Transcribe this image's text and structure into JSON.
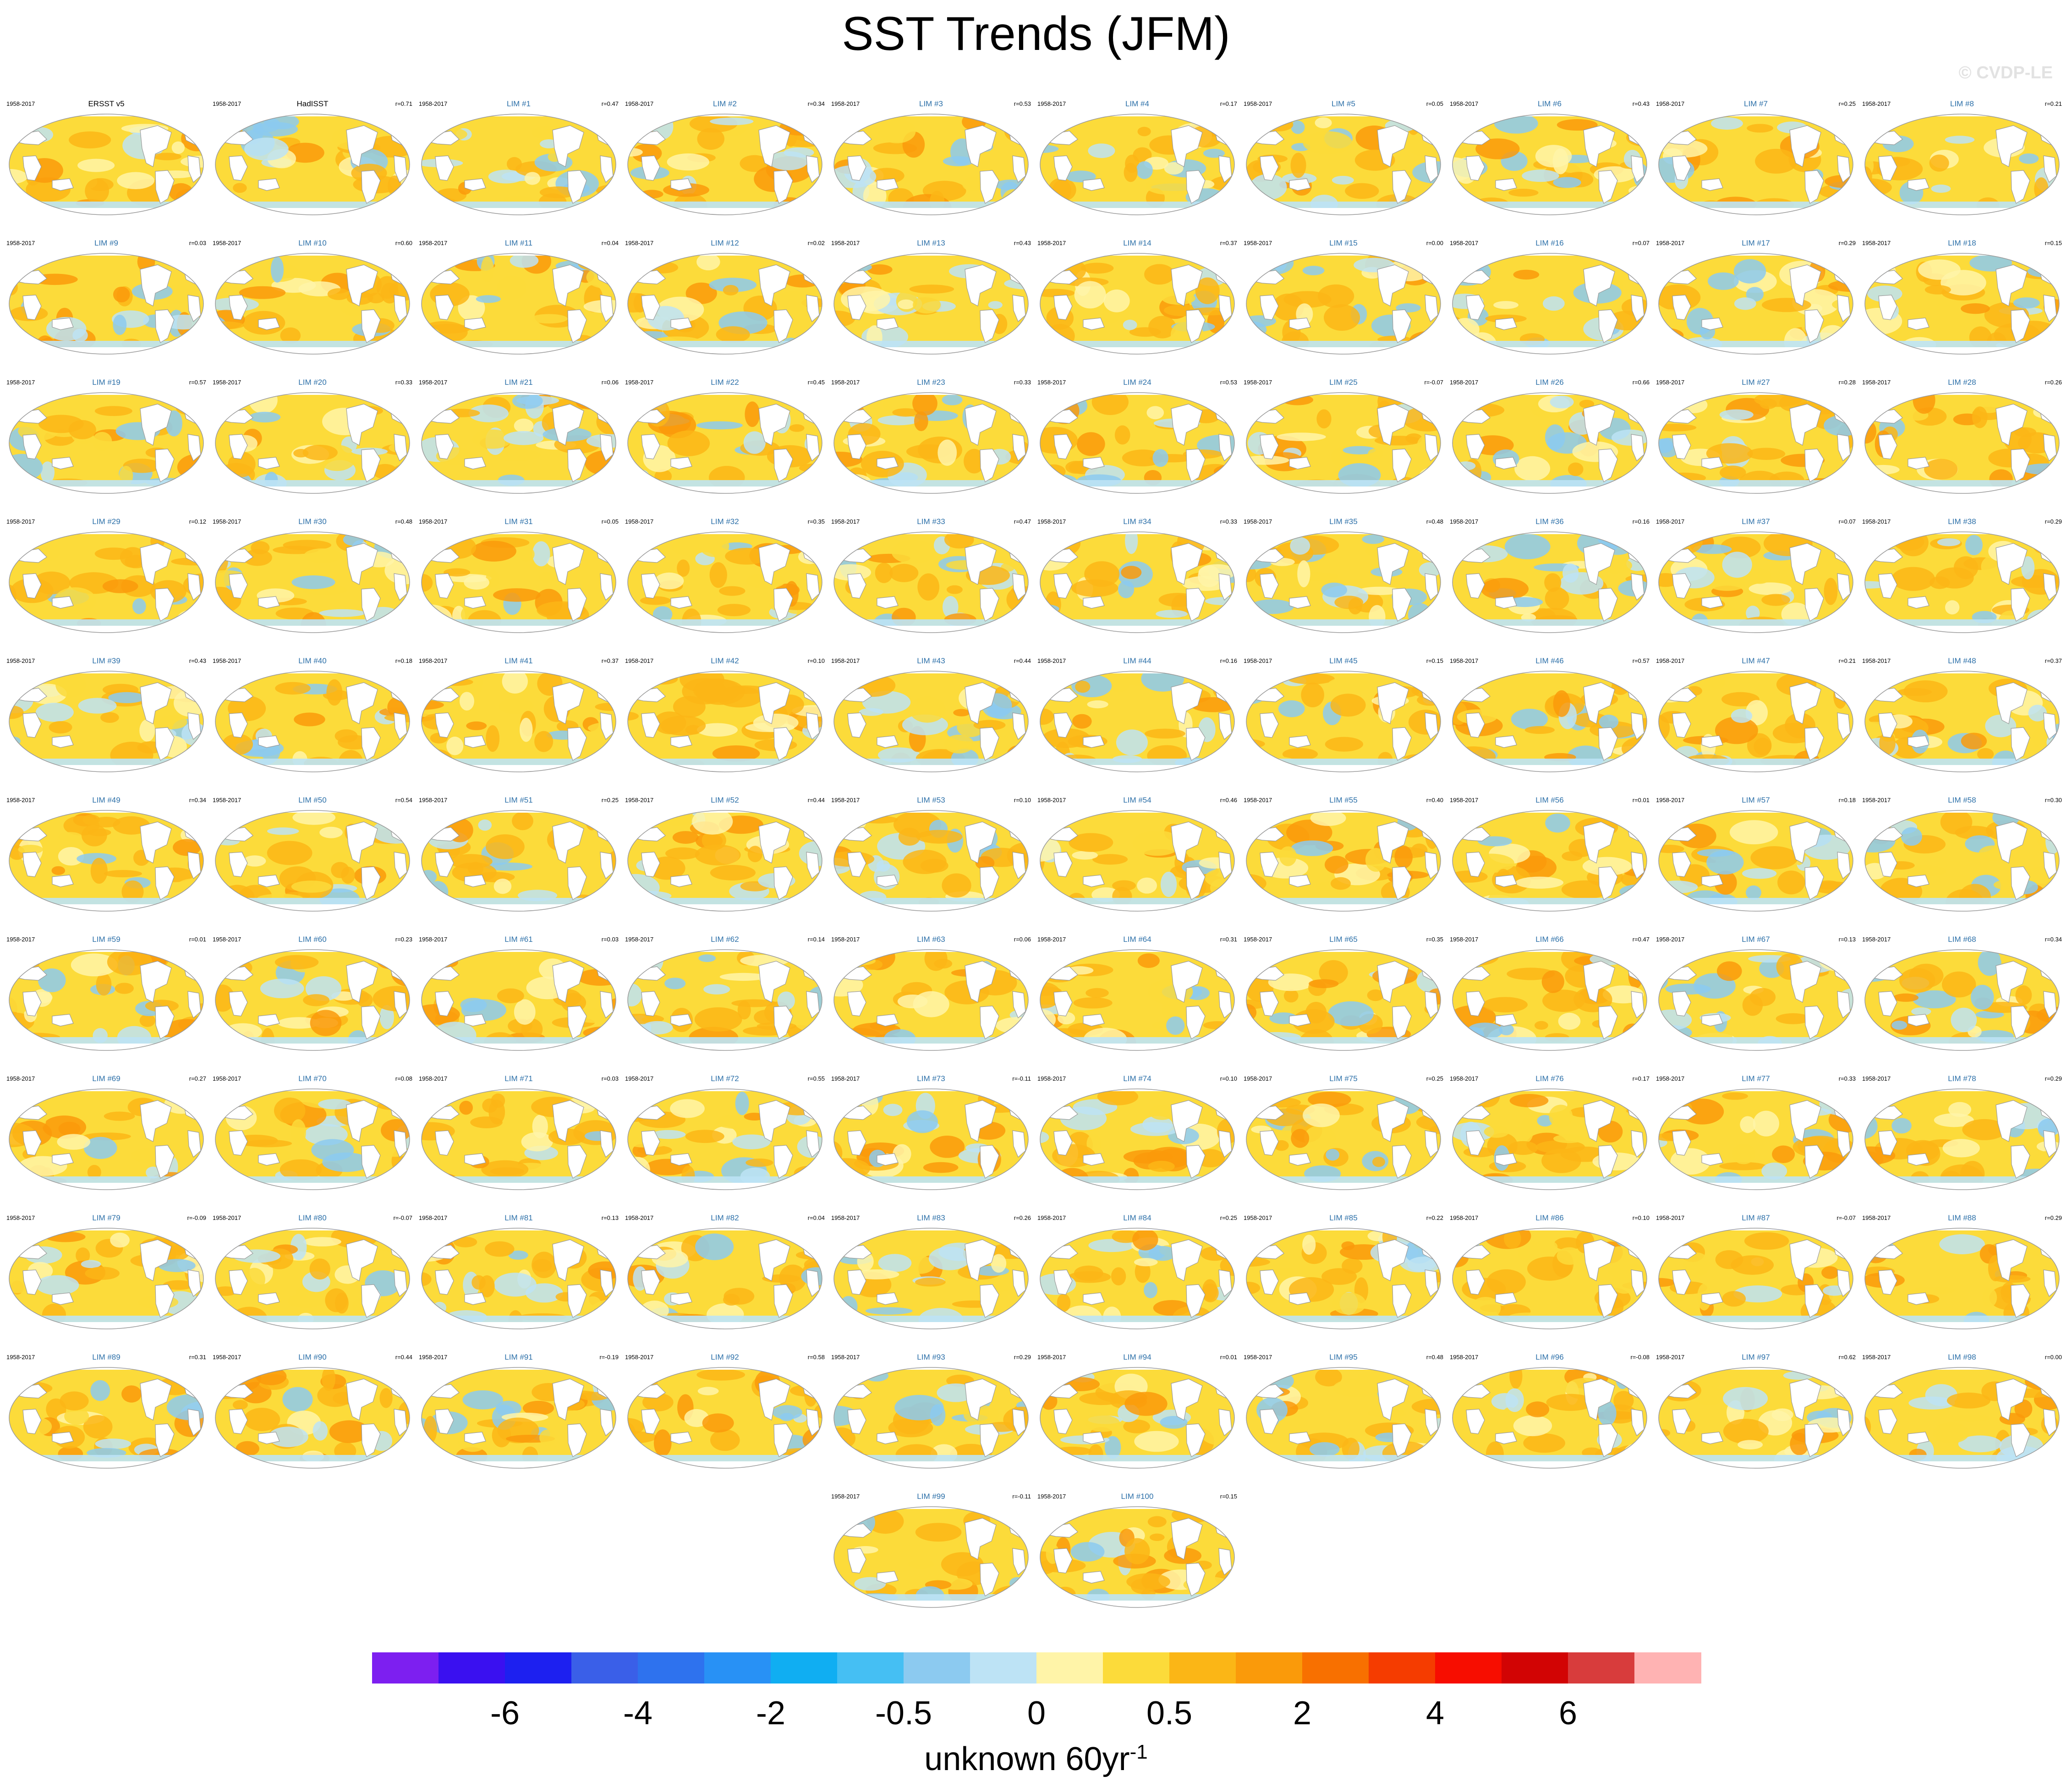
{
  "title": "SST Trends (JFM)",
  "watermark": "© CVDP-LE",
  "chart_data": {
    "type": "heatmap",
    "title": "SST Trends (JFM)",
    "period": "1958-2017",
    "units_main": "unknown 60yr",
    "units_sup": "-1",
    "colorbar": {
      "colors": [
        "#7d1ff0",
        "#3a10f0",
        "#1d20f0",
        "#3a5fe8",
        "#2e72ee",
        "#2891f5",
        "#10aef2",
        "#45bff3",
        "#8ccaf0",
        "#bde3f5",
        "#fff4a8",
        "#fcdb3a",
        "#fbb616",
        "#fa9a0a",
        "#f87000",
        "#f53c00",
        "#f70d00",
        "#d20404",
        "#d83c3c",
        "#ffb3b3"
      ],
      "tick_labels": [
        "-6",
        "-4",
        "-2",
        "-0.5",
        "0",
        "0.5",
        "2",
        "4",
        "6"
      ],
      "tick_boundaries": [
        2,
        4,
        6,
        8,
        10,
        12,
        14,
        16,
        18
      ]
    },
    "panels": [
      {
        "name": "ERSST v5",
        "r": ""
      },
      {
        "name": "HadISST",
        "r": "r=0.71"
      },
      {
        "name": "LIM #1",
        "r": "r=0.47"
      },
      {
        "name": "LIM #2",
        "r": "r=0.34"
      },
      {
        "name": "LIM #3",
        "r": "r=0.53"
      },
      {
        "name": "LIM #4",
        "r": "r=0.17"
      },
      {
        "name": "LIM #5",
        "r": "r=0.05"
      },
      {
        "name": "LIM #6",
        "r": "r=0.43"
      },
      {
        "name": "LIM #7",
        "r": "r=0.25"
      },
      {
        "name": "LIM #8",
        "r": "r=0.21"
      },
      {
        "name": "LIM #9",
        "r": "r=0.03"
      },
      {
        "name": "LIM #10",
        "r": "r=0.60"
      },
      {
        "name": "LIM #11",
        "r": "r=0.04"
      },
      {
        "name": "LIM #12",
        "r": "r=0.02"
      },
      {
        "name": "LIM #13",
        "r": "r=0.43"
      },
      {
        "name": "LIM #14",
        "r": "r=0.37"
      },
      {
        "name": "LIM #15",
        "r": "r=0.00"
      },
      {
        "name": "LIM #16",
        "r": "r=0.07"
      },
      {
        "name": "LIM #17",
        "r": "r=0.29"
      },
      {
        "name": "LIM #18",
        "r": "r=0.15"
      },
      {
        "name": "LIM #19",
        "r": "r=0.57"
      },
      {
        "name": "LIM #20",
        "r": "r=0.33"
      },
      {
        "name": "LIM #21",
        "r": "r=0.06"
      },
      {
        "name": "LIM #22",
        "r": "r=0.45"
      },
      {
        "name": "LIM #23",
        "r": "r=0.33"
      },
      {
        "name": "LIM #24",
        "r": "r=0.53"
      },
      {
        "name": "LIM #25",
        "r": "r=-0.07"
      },
      {
        "name": "LIM #26",
        "r": "r=0.66"
      },
      {
        "name": "LIM #27",
        "r": "r=0.28"
      },
      {
        "name": "LIM #28",
        "r": "r=0.26"
      },
      {
        "name": "LIM #29",
        "r": "r=0.12"
      },
      {
        "name": "LIM #30",
        "r": "r=0.48"
      },
      {
        "name": "LIM #31",
        "r": "r=0.05"
      },
      {
        "name": "LIM #32",
        "r": "r=0.35"
      },
      {
        "name": "LIM #33",
        "r": "r=0.47"
      },
      {
        "name": "LIM #34",
        "r": "r=0.33"
      },
      {
        "name": "LIM #35",
        "r": "r=0.48"
      },
      {
        "name": "LIM #36",
        "r": "r=0.16"
      },
      {
        "name": "LIM #37",
        "r": "r=0.07"
      },
      {
        "name": "LIM #38",
        "r": "r=0.29"
      },
      {
        "name": "LIM #39",
        "r": "r=0.43"
      },
      {
        "name": "LIM #40",
        "r": "r=0.18"
      },
      {
        "name": "LIM #41",
        "r": "r=0.37"
      },
      {
        "name": "LIM #42",
        "r": "r=0.10"
      },
      {
        "name": "LIM #43",
        "r": "r=0.44"
      },
      {
        "name": "LIM #44",
        "r": "r=0.16"
      },
      {
        "name": "LIM #45",
        "r": "r=0.15"
      },
      {
        "name": "LIM #46",
        "r": "r=0.57"
      },
      {
        "name": "LIM #47",
        "r": "r=0.21"
      },
      {
        "name": "LIM #48",
        "r": "r=0.37"
      },
      {
        "name": "LIM #49",
        "r": "r=0.34"
      },
      {
        "name": "LIM #50",
        "r": "r=0.54"
      },
      {
        "name": "LIM #51",
        "r": "r=0.25"
      },
      {
        "name": "LIM #52",
        "r": "r=0.44"
      },
      {
        "name": "LIM #53",
        "r": "r=0.10"
      },
      {
        "name": "LIM #54",
        "r": "r=0.46"
      },
      {
        "name": "LIM #55",
        "r": "r=0.40"
      },
      {
        "name": "LIM #56",
        "r": "r=0.01"
      },
      {
        "name": "LIM #57",
        "r": "r=0.18"
      },
      {
        "name": "LIM #58",
        "r": "r=0.30"
      },
      {
        "name": "LIM #59",
        "r": "r=0.01"
      },
      {
        "name": "LIM #60",
        "r": "r=0.23"
      },
      {
        "name": "LIM #61",
        "r": "r=0.03"
      },
      {
        "name": "LIM #62",
        "r": "r=0.14"
      },
      {
        "name": "LIM #63",
        "r": "r=0.06"
      },
      {
        "name": "LIM #64",
        "r": "r=0.31"
      },
      {
        "name": "LIM #65",
        "r": "r=0.35"
      },
      {
        "name": "LIM #66",
        "r": "r=0.47"
      },
      {
        "name": "LIM #67",
        "r": "r=0.13"
      },
      {
        "name": "LIM #68",
        "r": "r=0.34"
      },
      {
        "name": "LIM #69",
        "r": "r=0.27"
      },
      {
        "name": "LIM #70",
        "r": "r=0.08"
      },
      {
        "name": "LIM #71",
        "r": "r=0.03"
      },
      {
        "name": "LIM #72",
        "r": "r=0.55"
      },
      {
        "name": "LIM #73",
        "r": "r=-0.11"
      },
      {
        "name": "LIM #74",
        "r": "r=0.10"
      },
      {
        "name": "LIM #75",
        "r": "r=0.25"
      },
      {
        "name": "LIM #76",
        "r": "r=0.17"
      },
      {
        "name": "LIM #77",
        "r": "r=0.33"
      },
      {
        "name": "LIM #78",
        "r": "r=0.29"
      },
      {
        "name": "LIM #79",
        "r": "r=-0.09"
      },
      {
        "name": "LIM #80",
        "r": "r=-0.07"
      },
      {
        "name": "LIM #81",
        "r": "r=0.13"
      },
      {
        "name": "LIM #82",
        "r": "r=0.04"
      },
      {
        "name": "LIM #83",
        "r": "r=0.26"
      },
      {
        "name": "LIM #84",
        "r": "r=0.25"
      },
      {
        "name": "LIM #85",
        "r": "r=0.22"
      },
      {
        "name": "LIM #86",
        "r": "r=0.10"
      },
      {
        "name": "LIM #87",
        "r": "r=-0.07"
      },
      {
        "name": "LIM #88",
        "r": "r=0.29"
      },
      {
        "name": "LIM #89",
        "r": "r=0.31"
      },
      {
        "name": "LIM #90",
        "r": "r=0.44"
      },
      {
        "name": "LIM #91",
        "r": "r=-0.19"
      },
      {
        "name": "LIM #92",
        "r": "r=0.58"
      },
      {
        "name": "LIM #93",
        "r": "r=0.29"
      },
      {
        "name": "LIM #94",
        "r": "r=0.01"
      },
      {
        "name": "LIM #95",
        "r": "r=0.48"
      },
      {
        "name": "LIM #96",
        "r": "r=-0.08"
      },
      {
        "name": "LIM #97",
        "r": "r=0.62"
      },
      {
        "name": "LIM #98",
        "r": "r=0.00"
      },
      {
        "name": "LIM #99",
        "r": "r=-0.11"
      },
      {
        "name": "LIM #100",
        "r": "r=0.15"
      }
    ]
  }
}
